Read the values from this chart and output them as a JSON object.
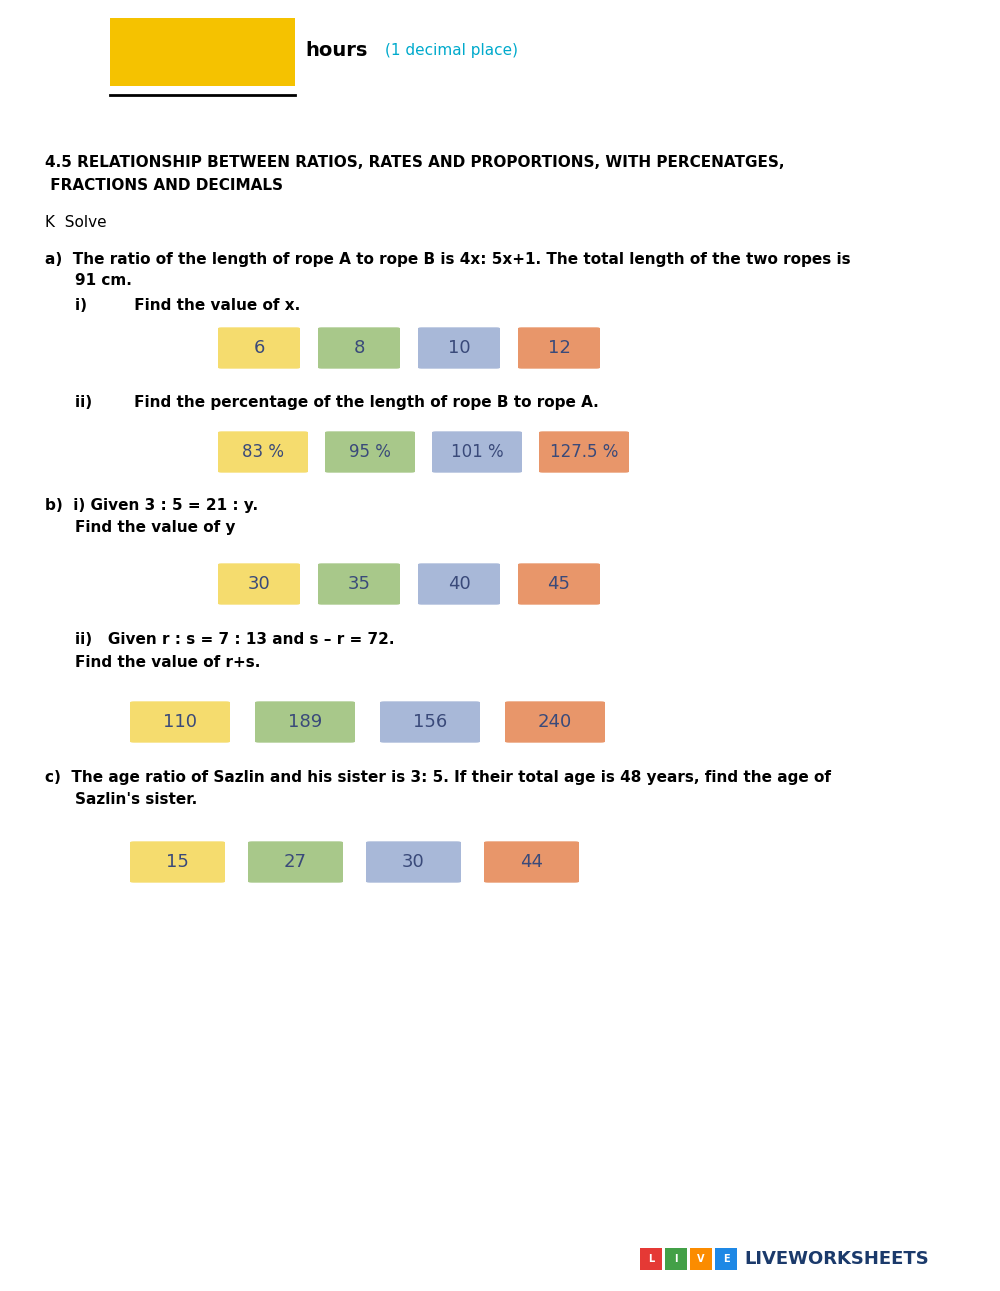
{
  "background_color": "#ffffff",
  "hours_hint_color": "#00AACC",
  "section_title_line1": "4.5 RELATIONSHIP BETWEEN RATIOS, RATES AND PROPORTIONS, WITH PERCENATGES,",
  "section_title_line2": " FRACTIONS AND DECIMALS",
  "k_label": "K  Solve",
  "option_colors": [
    "#F5DC6E",
    "#A8C88A",
    "#A8B8D8",
    "#E8966A"
  ],
  "text_color": "#3A4A7A",
  "liveworksheets_color": "#1B3A6B",
  "logo_colors": [
    "#E53935",
    "#43A047",
    "#FB8C00",
    "#1E88E5"
  ],
  "yellow_color": "#F5C200"
}
